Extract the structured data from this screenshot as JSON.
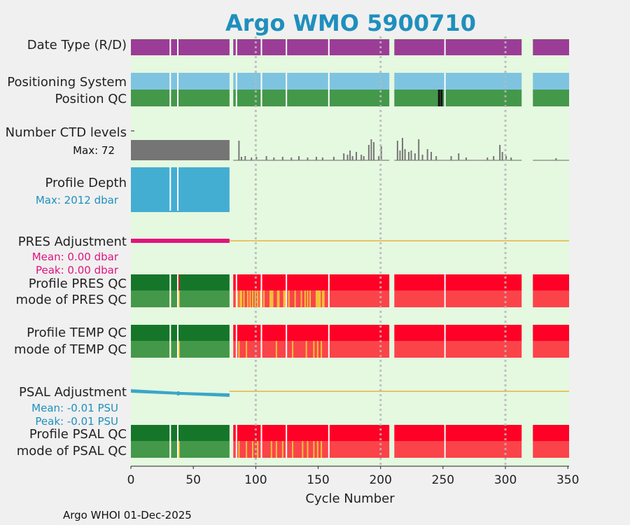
{
  "chart_data": {
    "type": "bar",
    "title": "Argo WMO 5900710",
    "xlabel": "Cycle Number",
    "xlim": [
      0,
      351
    ],
    "xticks": [
      0,
      50,
      100,
      150,
      200,
      250,
      300,
      350
    ],
    "grid_x": [
      100,
      200,
      300
    ],
    "footer": "Argo WHOI 01-Dec-2025",
    "data_gaps": [
      [
        79,
        82
      ],
      [
        207,
        211
      ],
      [
        313,
        322
      ]
    ],
    "white_gaps": [
      [
        31,
        32
      ],
      [
        37,
        38
      ],
      [
        84,
        85
      ],
      [
        104,
        105
      ],
      [
        124,
        125
      ],
      [
        158,
        159
      ],
      [
        251,
        252
      ]
    ],
    "cycle_end": 351,
    "rows": [
      {
        "key": "date_type",
        "label": "Date Type (R/D)",
        "color": "#9b3d96"
      },
      {
        "key": "positioning",
        "label": "Positioning System",
        "color": "#7ec4e0"
      },
      {
        "key": "position_qc",
        "label": "Position QC",
        "color": "#44984a",
        "marks": [
          246,
          248
        ]
      },
      {
        "key": "ctd_levels",
        "label": "Number CTD levels",
        "sub": "Max: 72",
        "early_color": "#757575"
      },
      {
        "key": "profile_depth",
        "label": "Profile Depth",
        "sub": "Max: 2012 dbar",
        "color": "#44aed2",
        "sub_color": "#1f8fbd"
      },
      {
        "key": "pres_adj",
        "label": "PRES Adjustment",
        "sub": "Mean: 0.00 dbar",
        "sub2": "Peak: 0.00 dbar",
        "color": "#e0147f",
        "line_color": "#e8b23a",
        "sub_color": "#e0147f"
      },
      {
        "key": "pres_qc",
        "label": "Profile PRES QC",
        "label2": "mode of PRES QC",
        "early_top": "#15762a",
        "early_bot": "#44984a",
        "late_top": "#ff0026",
        "late_bot": "#fb434a",
        "yellow": "#f2c13a"
      },
      {
        "key": "temp_qc",
        "label": "Profile TEMP QC",
        "label2": "mode of TEMP QC"
      },
      {
        "key": "psal_adj",
        "label": "PSAL Adjustment",
        "sub": "Mean: -0.01 PSU",
        "sub2": "Peak: -0.01 PSU",
        "color": "#3aa6c8",
        "sub_color": "#1f8fbd"
      },
      {
        "key": "psal_qc",
        "label": "Profile PSAL QC",
        "label2": "mode of PSAL QC"
      }
    ],
    "ctd_spikes": [
      {
        "x": 86,
        "v": 28
      },
      {
        "x": 88,
        "v": 5
      },
      {
        "x": 91,
        "v": 6
      },
      {
        "x": 96,
        "v": 4
      },
      {
        "x": 100,
        "v": 5
      },
      {
        "x": 108,
        "v": 6
      },
      {
        "x": 114,
        "v": 4
      },
      {
        "x": 121,
        "v": 5
      },
      {
        "x": 128,
        "v": 4
      },
      {
        "x": 134,
        "v": 6
      },
      {
        "x": 141,
        "v": 4
      },
      {
        "x": 148,
        "v": 5
      },
      {
        "x": 153,
        "v": 4
      },
      {
        "x": 162,
        "v": 5
      },
      {
        "x": 170,
        "v": 10
      },
      {
        "x": 173,
        "v": 8
      },
      {
        "x": 175,
        "v": 14
      },
      {
        "x": 177,
        "v": 6
      },
      {
        "x": 180,
        "v": 12
      },
      {
        "x": 184,
        "v": 8
      },
      {
        "x": 186,
        "v": 6
      },
      {
        "x": 190,
        "v": 22
      },
      {
        "x": 192,
        "v": 30
      },
      {
        "x": 194,
        "v": 26
      },
      {
        "x": 198,
        "v": 6
      },
      {
        "x": 200,
        "v": 20
      },
      {
        "x": 213,
        "v": 28
      },
      {
        "x": 215,
        "v": 14
      },
      {
        "x": 217,
        "v": 32
      },
      {
        "x": 219,
        "v": 16
      },
      {
        "x": 222,
        "v": 12
      },
      {
        "x": 224,
        "v": 14
      },
      {
        "x": 227,
        "v": 10
      },
      {
        "x": 230,
        "v": 30
      },
      {
        "x": 233,
        "v": 8
      },
      {
        "x": 237,
        "v": 16
      },
      {
        "x": 240,
        "v": 12
      },
      {
        "x": 244,
        "v": 6
      },
      {
        "x": 256,
        "v": 6
      },
      {
        "x": 262,
        "v": 10
      },
      {
        "x": 268,
        "v": 4
      },
      {
        "x": 285,
        "v": 4
      },
      {
        "x": 290,
        "v": 6
      },
      {
        "x": 295,
        "v": 22
      },
      {
        "x": 297,
        "v": 12
      },
      {
        "x": 300,
        "v": 6
      },
      {
        "x": 304,
        "v": 4
      },
      {
        "x": 340,
        "v": 3
      }
    ],
    "pres_yellow": [
      31,
      38,
      85,
      87,
      88,
      90,
      93,
      95,
      97,
      99,
      101,
      103,
      106,
      111,
      112,
      113,
      117,
      118,
      122,
      123,
      126,
      131,
      136,
      139,
      141,
      143,
      148,
      149,
      150,
      151,
      153,
      154
    ],
    "temp_yellow": [
      31,
      38,
      86,
      92,
      104,
      116,
      129,
      140,
      146,
      149,
      152
    ],
    "psal_yellow": [
      31,
      38,
      86,
      92,
      97,
      101,
      104,
      112,
      116,
      121,
      129,
      137,
      141,
      146,
      149,
      152
    ],
    "pres_red_early": [
      38
    ]
  }
}
